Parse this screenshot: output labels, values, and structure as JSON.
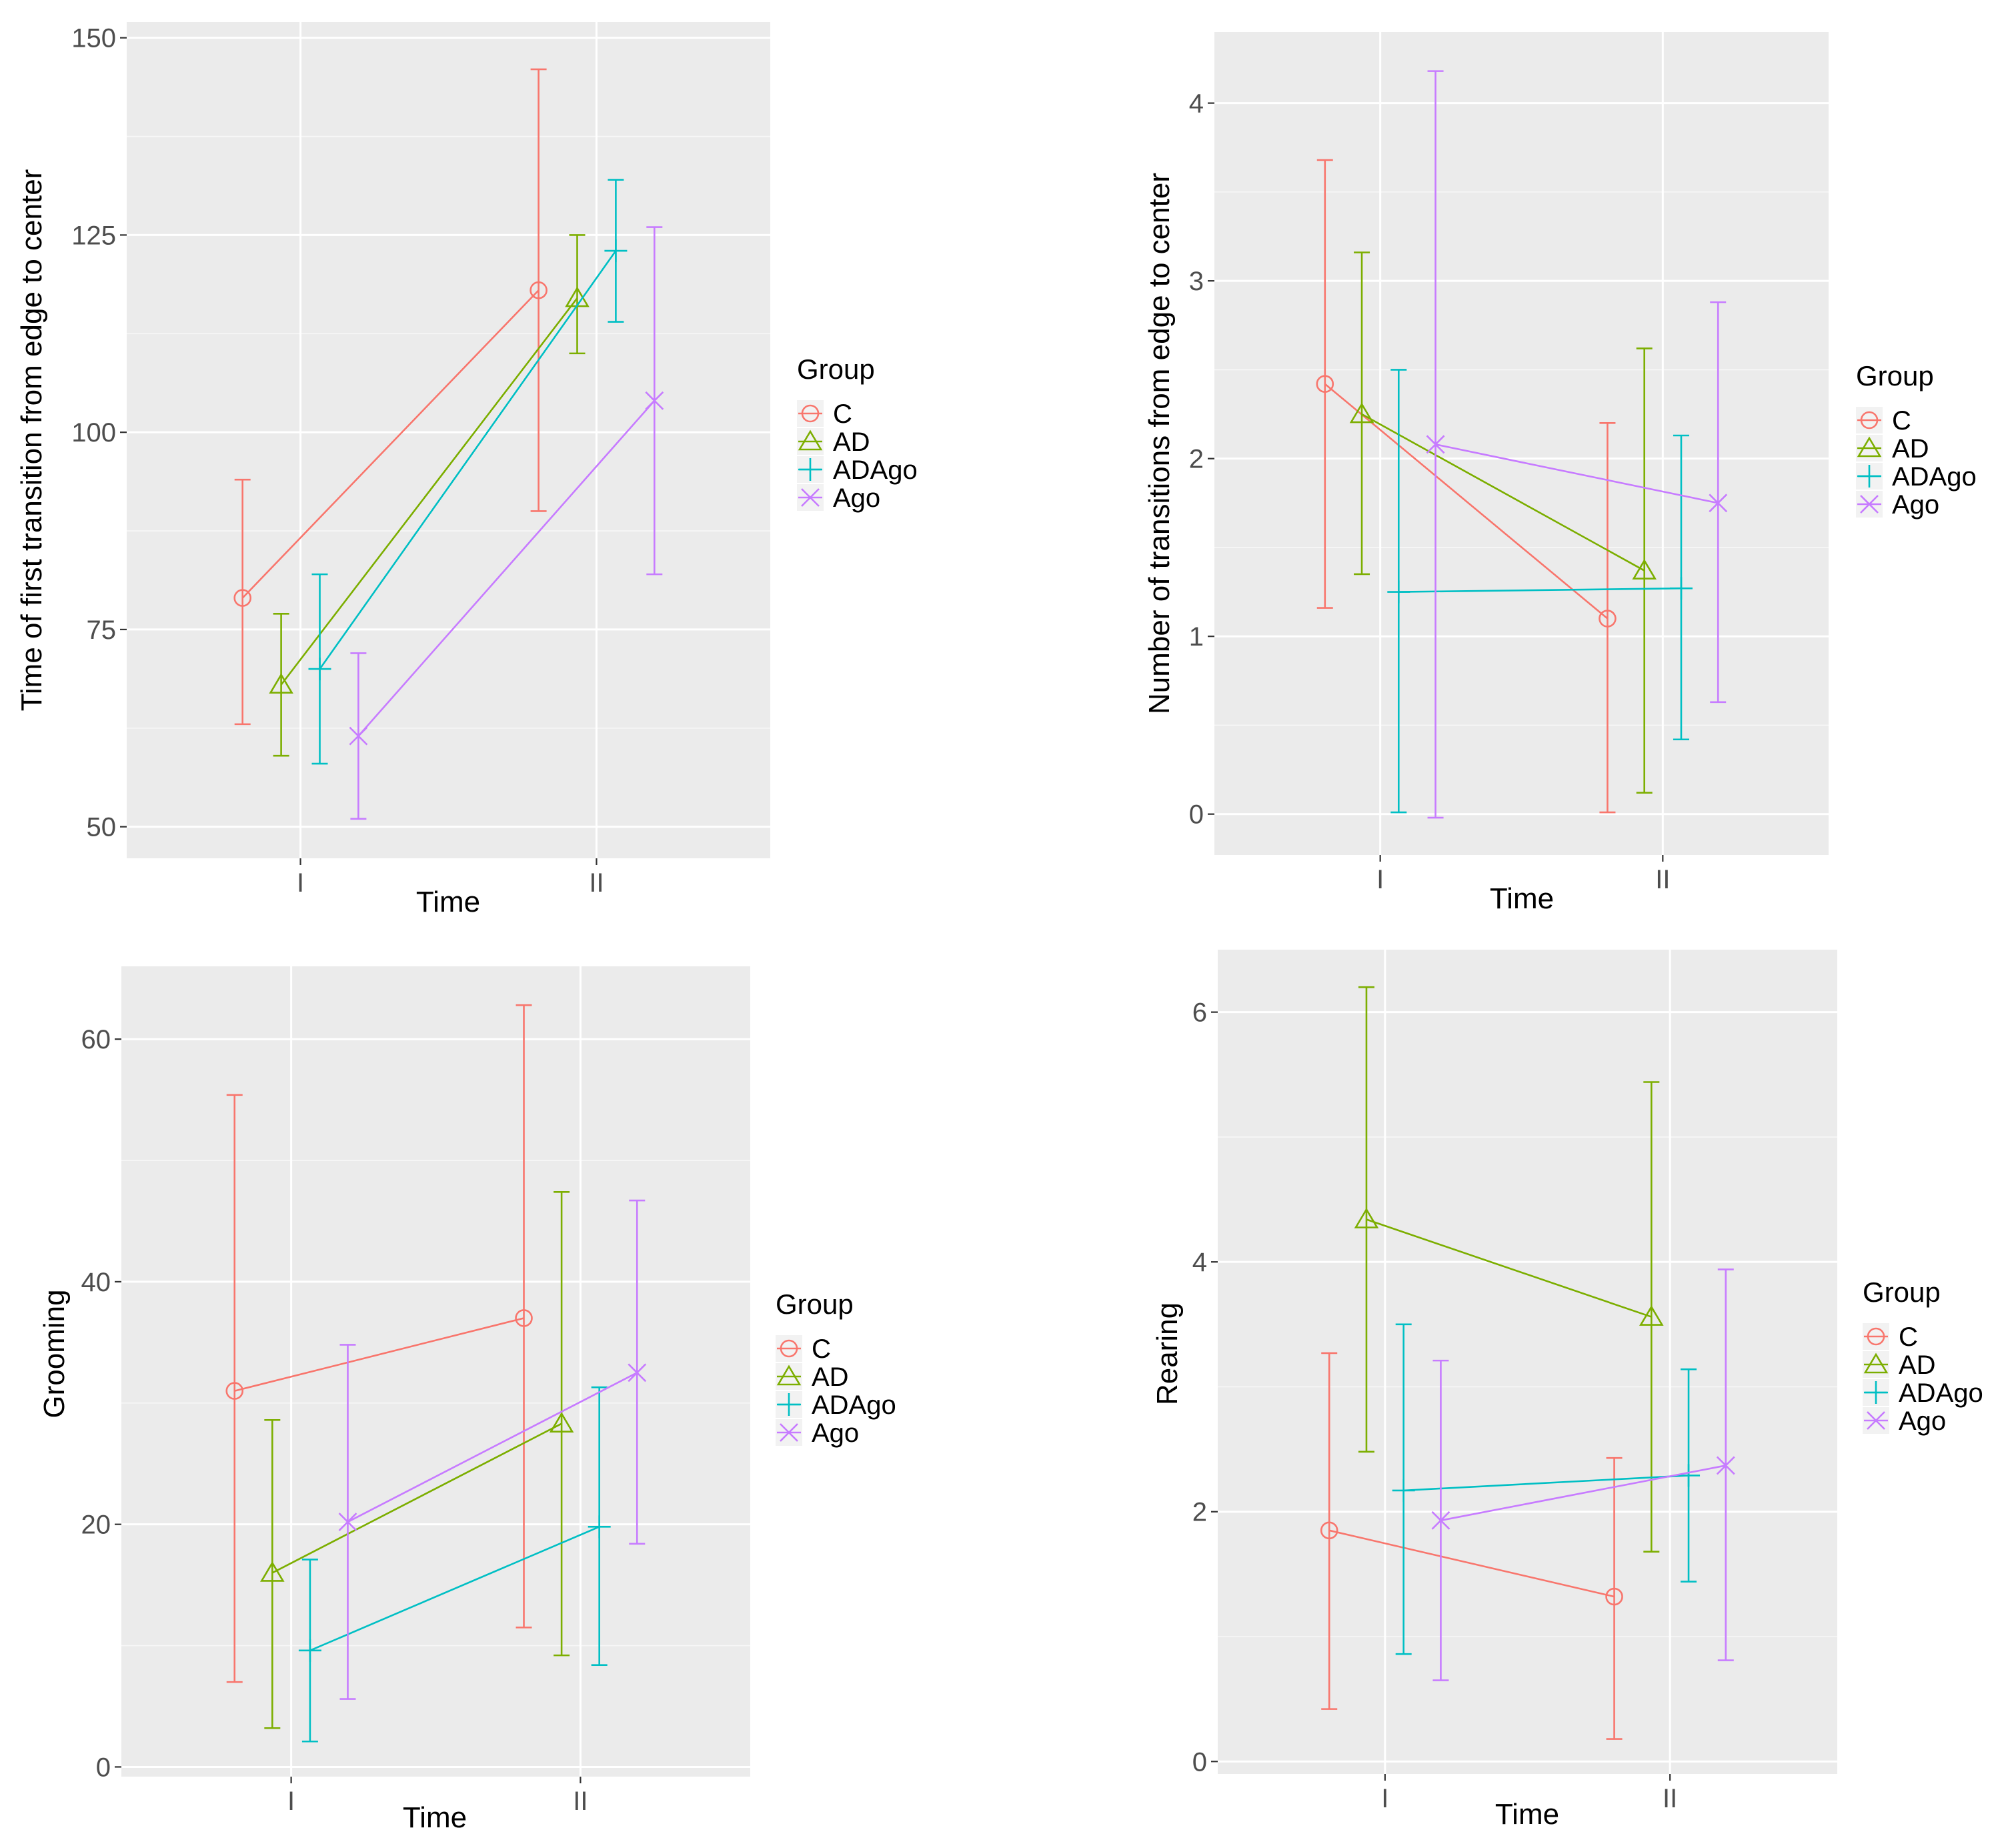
{
  "legend": {
    "title": "Group",
    "groups": [
      "C",
      "AD",
      "ADAgo",
      "Ago"
    ],
    "colors": {
      "C": "#F8766D",
      "AD": "#7CAE00",
      "ADAgo": "#00BFC4",
      "Ago": "#C77CFF"
    },
    "shapes": {
      "C": "circle-icon",
      "AD": "triangle-icon",
      "ADAgo": "plus-icon",
      "Ago": "cross-icon"
    }
  },
  "chart_data": [
    {
      "type": "line",
      "title": "",
      "xlabel": "Time",
      "ylabel": "Time of first transition from edge to center",
      "x": [
        "I",
        "II"
      ],
      "ylim": [
        46,
        152
      ],
      "yticks": [
        "50",
        "75",
        "100",
        "125",
        "150"
      ],
      "series": [
        {
          "name": "C",
          "values": [
            79,
            118
          ],
          "lower": [
            63,
            90
          ],
          "upper": [
            94,
            146
          ]
        },
        {
          "name": "AD",
          "values": [
            68,
            117
          ],
          "lower": [
            59,
            110
          ],
          "upper": [
            77,
            125
          ]
        },
        {
          "name": "ADAgo",
          "values": [
            70,
            123
          ],
          "lower": [
            58,
            114
          ],
          "upper": [
            82,
            132
          ]
        },
        {
          "name": "Ago",
          "values": [
            61.5,
            104
          ],
          "lower": [
            51,
            82
          ],
          "upper": [
            72,
            126
          ]
        }
      ]
    },
    {
      "type": "line",
      "title": "",
      "xlabel": "Time",
      "ylabel": "Number of transitions from edge to center",
      "x": [
        "I",
        "II"
      ],
      "ylim": [
        -0.23,
        4.4
      ],
      "yticks": [
        "0",
        "1",
        "2",
        "3",
        "4"
      ],
      "series": [
        {
          "name": "C",
          "values": [
            2.42,
            1.1
          ],
          "lower": [
            1.16,
            0.01
          ],
          "upper": [
            3.68,
            2.2
          ]
        },
        {
          "name": "AD",
          "values": [
            2.25,
            1.37
          ],
          "lower": [
            1.35,
            0.12
          ],
          "upper": [
            3.16,
            2.62
          ]
        },
        {
          "name": "ADAgo",
          "values": [
            1.25,
            1.27
          ],
          "lower": [
            0.01,
            0.42
          ],
          "upper": [
            2.5,
            2.13
          ]
        },
        {
          "name": "Ago",
          "values": [
            2.08,
            1.75
          ],
          "lower": [
            -0.02,
            0.63
          ],
          "upper": [
            4.18,
            2.88
          ]
        }
      ]
    },
    {
      "type": "line",
      "title": "",
      "xlabel": "Time",
      "ylabel": "Grooming",
      "x": [
        "I",
        "II"
      ],
      "ylim": [
        -0.8,
        66
      ],
      "yticks": [
        "0",
        "20",
        "40",
        "60"
      ],
      "series": [
        {
          "name": "C",
          "values": [
            31,
            37
          ],
          "lower": [
            7,
            11.5
          ],
          "upper": [
            55.4,
            62.8
          ]
        },
        {
          "name": "AD",
          "values": [
            16,
            28.3
          ],
          "lower": [
            3.2,
            9.2
          ],
          "upper": [
            28.6,
            47.4
          ]
        },
        {
          "name": "ADAgo",
          "values": [
            9.6,
            19.8
          ],
          "lower": [
            2.1,
            8.4
          ],
          "upper": [
            17.1,
            31.3
          ]
        },
        {
          "name": "Ago",
          "values": [
            20.2,
            32.5
          ],
          "lower": [
            5.6,
            18.4
          ],
          "upper": [
            34.8,
            46.7
          ]
        }
      ]
    },
    {
      "type": "line",
      "title": "",
      "xlabel": "Time",
      "ylabel": "Rearing",
      "x": [
        "I",
        "II"
      ],
      "ylim": [
        -0.1,
        6.5
      ],
      "yticks": [
        "0",
        "2",
        "4",
        "6"
      ],
      "series": [
        {
          "name": "C",
          "values": [
            1.85,
            1.32
          ],
          "lower": [
            0.42,
            0.18
          ],
          "upper": [
            3.27,
            2.43
          ]
        },
        {
          "name": "AD",
          "values": [
            4.34,
            3.56
          ],
          "lower": [
            2.48,
            1.68
          ],
          "upper": [
            6.2,
            5.44
          ]
        },
        {
          "name": "ADAgo",
          "values": [
            2.17,
            2.29
          ],
          "lower": [
            0.86,
            1.44
          ],
          "upper": [
            3.5,
            3.14
          ]
        },
        {
          "name": "Ago",
          "values": [
            1.93,
            2.37
          ],
          "lower": [
            0.65,
            0.81
          ],
          "upper": [
            3.21,
            3.94
          ]
        }
      ]
    }
  ]
}
